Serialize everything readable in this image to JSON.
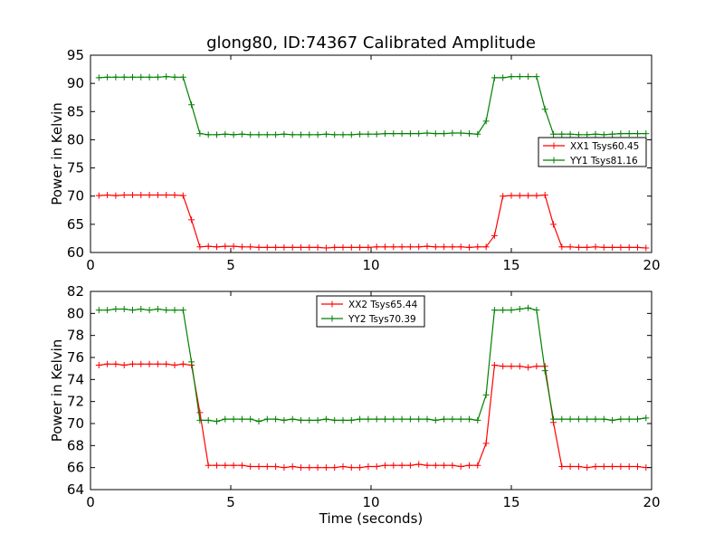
{
  "title": "glong80, ID:74367 Calibrated Amplitude",
  "colors": {
    "xx": "#ff0000",
    "yy": "#008000"
  },
  "chart_data": [
    {
      "type": "line",
      "title": "glong80, ID:74367 Calibrated Amplitude",
      "xlabel": "",
      "ylabel": "Power in Kelvin",
      "xlim": [
        0,
        20
      ],
      "ylim": [
        60,
        95
      ],
      "xticks": [
        0,
        5,
        10,
        15,
        20
      ],
      "yticks": [
        60,
        65,
        70,
        75,
        80,
        85,
        90,
        95
      ],
      "grid": false,
      "legend_position": "center-right",
      "x": [
        0.3,
        0.6,
        0.9,
        1.2,
        1.5,
        1.8,
        2.1,
        2.4,
        2.7,
        3.0,
        3.3,
        3.6,
        3.9,
        4.2,
        4.5,
        4.8,
        5.1,
        5.4,
        5.7,
        6.0,
        6.3,
        6.6,
        6.9,
        7.2,
        7.5,
        7.8,
        8.1,
        8.4,
        8.7,
        9.0,
        9.3,
        9.6,
        9.9,
        10.2,
        10.5,
        10.8,
        11.1,
        11.4,
        11.7,
        12.0,
        12.3,
        12.6,
        12.9,
        13.2,
        13.5,
        13.8,
        14.1,
        14.4,
        14.7,
        15.0,
        15.3,
        15.6,
        15.9,
        16.2,
        16.5,
        16.8,
        17.1,
        17.4,
        17.7,
        18.0,
        18.3,
        18.6,
        18.9,
        19.2,
        19.5,
        19.8
      ],
      "series": [
        {
          "name": "XX1 Tsys60.45",
          "color": "#ff0000",
          "values": [
            70.1,
            70.2,
            70.1,
            70.2,
            70.2,
            70.2,
            70.2,
            70.2,
            70.2,
            70.2,
            70.1,
            65.8,
            61.0,
            61.1,
            61.0,
            61.1,
            61.1,
            61.0,
            61.0,
            60.9,
            60.9,
            60.9,
            60.9,
            60.9,
            60.9,
            60.9,
            60.9,
            60.8,
            60.9,
            60.9,
            60.9,
            60.9,
            60.9,
            61.0,
            61.0,
            61.0,
            61.0,
            61.0,
            61.0,
            61.1,
            61.0,
            61.0,
            61.0,
            61.0,
            60.9,
            61.0,
            61.0,
            63.0,
            70.0,
            70.1,
            70.1,
            70.1,
            70.1,
            70.2,
            65.0,
            61.0,
            61.0,
            60.9,
            60.9,
            61.0,
            60.9,
            60.9,
            60.9,
            60.9,
            60.9,
            60.8
          ]
        },
        {
          "name": "YY1 Tsys81.16",
          "color": "#008000",
          "values": [
            91.0,
            91.1,
            91.1,
            91.1,
            91.1,
            91.1,
            91.1,
            91.1,
            91.2,
            91.1,
            91.1,
            86.2,
            81.1,
            80.9,
            80.9,
            81.0,
            80.9,
            81.0,
            80.9,
            80.9,
            80.9,
            80.9,
            81.0,
            80.9,
            80.9,
            80.9,
            80.9,
            81.0,
            80.9,
            80.9,
            80.9,
            81.0,
            81.0,
            81.0,
            81.1,
            81.1,
            81.1,
            81.1,
            81.1,
            81.2,
            81.1,
            81.1,
            81.2,
            81.2,
            81.1,
            81.0,
            83.3,
            91.0,
            91.0,
            91.2,
            91.2,
            91.2,
            91.2,
            85.4,
            81.0,
            81.0,
            81.0,
            80.9,
            80.9,
            81.0,
            80.9,
            81.0,
            81.1,
            81.1,
            81.1,
            81.1
          ]
        }
      ]
    },
    {
      "type": "line",
      "title": "",
      "xlabel": "Time (seconds)",
      "ylabel": "Power in Kelvin",
      "xlim": [
        0,
        20
      ],
      "ylim": [
        64,
        82
      ],
      "xticks": [
        0,
        5,
        10,
        15,
        20
      ],
      "yticks": [
        64,
        66,
        68,
        70,
        72,
        74,
        76,
        78,
        80,
        82
      ],
      "grid": false,
      "legend_position": "top-center",
      "x": [
        0.3,
        0.6,
        0.9,
        1.2,
        1.5,
        1.8,
        2.1,
        2.4,
        2.7,
        3.0,
        3.3,
        3.6,
        3.9,
        4.2,
        4.5,
        4.8,
        5.1,
        5.4,
        5.7,
        6.0,
        6.3,
        6.6,
        6.9,
        7.2,
        7.5,
        7.8,
        8.1,
        8.4,
        8.7,
        9.0,
        9.3,
        9.6,
        9.9,
        10.2,
        10.5,
        10.8,
        11.1,
        11.4,
        11.7,
        12.0,
        12.3,
        12.6,
        12.9,
        13.2,
        13.5,
        13.8,
        14.1,
        14.4,
        14.7,
        15.0,
        15.3,
        15.6,
        15.9,
        16.2,
        16.5,
        16.8,
        17.1,
        17.4,
        17.7,
        18.0,
        18.3,
        18.6,
        18.9,
        19.2,
        19.5,
        19.8
      ],
      "series": [
        {
          "name": "XX2 Tsys65.44",
          "color": "#ff0000",
          "values": [
            75.3,
            75.4,
            75.4,
            75.3,
            75.4,
            75.4,
            75.4,
            75.4,
            75.4,
            75.3,
            75.4,
            75.3,
            71.0,
            66.2,
            66.2,
            66.2,
            66.2,
            66.2,
            66.1,
            66.1,
            66.1,
            66.1,
            66.0,
            66.1,
            66.0,
            66.0,
            66.0,
            66.0,
            66.0,
            66.1,
            66.0,
            66.0,
            66.1,
            66.1,
            66.2,
            66.2,
            66.2,
            66.2,
            66.3,
            66.2,
            66.2,
            66.2,
            66.2,
            66.1,
            66.2,
            66.2,
            68.2,
            75.3,
            75.2,
            75.2,
            75.2,
            75.1,
            75.2,
            75.2,
            70.1,
            66.1,
            66.1,
            66.1,
            66.0,
            66.1,
            66.1,
            66.1,
            66.1,
            66.1,
            66.1,
            66.0
          ]
        },
        {
          "name": "YY2 Tsys70.39",
          "color": "#008000",
          "values": [
            80.3,
            80.3,
            80.4,
            80.4,
            80.3,
            80.4,
            80.3,
            80.4,
            80.3,
            80.3,
            80.3,
            75.6,
            70.3,
            70.3,
            70.2,
            70.4,
            70.4,
            70.4,
            70.4,
            70.2,
            70.4,
            70.4,
            70.3,
            70.4,
            70.3,
            70.3,
            70.3,
            70.4,
            70.3,
            70.3,
            70.3,
            70.4,
            70.4,
            70.4,
            70.4,
            70.4,
            70.4,
            70.4,
            70.4,
            70.4,
            70.3,
            70.4,
            70.4,
            70.4,
            70.4,
            70.3,
            72.6,
            80.3,
            80.3,
            80.3,
            80.4,
            80.5,
            80.3,
            74.8,
            70.4,
            70.4,
            70.4,
            70.4,
            70.4,
            70.4,
            70.4,
            70.3,
            70.4,
            70.4,
            70.4,
            70.5
          ]
        }
      ]
    }
  ]
}
